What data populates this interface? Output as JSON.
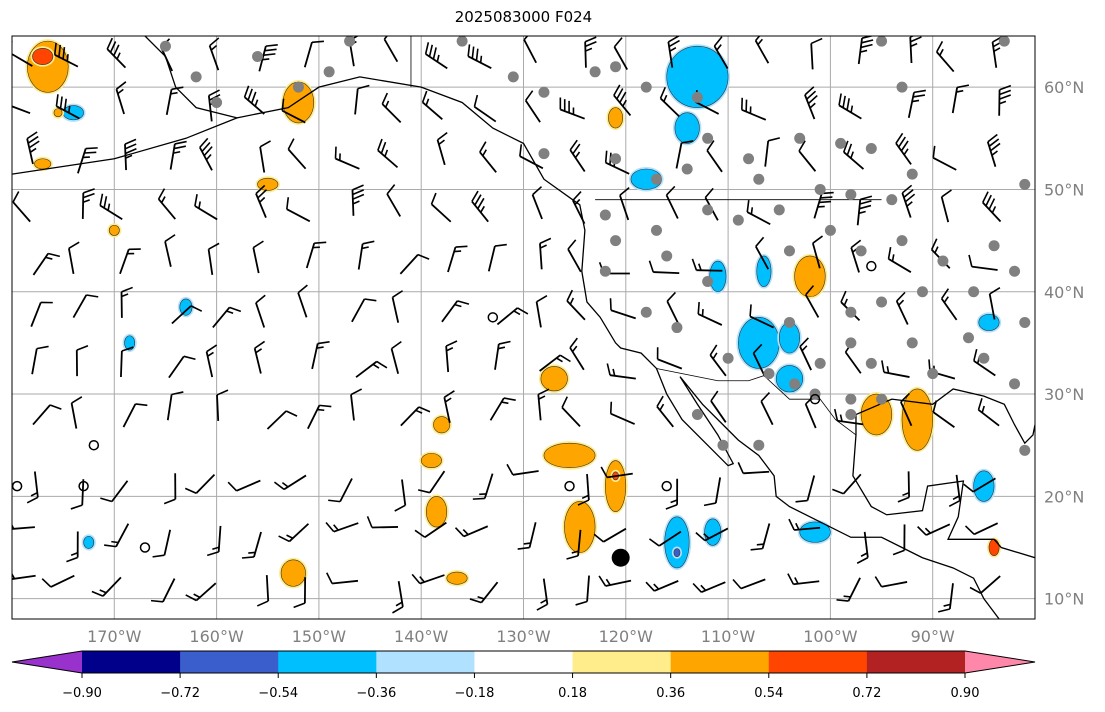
{
  "title": "2025083000 F024",
  "map": {
    "extent": {
      "lon": [
        -180,
        -80
      ],
      "lat": [
        8,
        65
      ]
    },
    "lon_ticks": [
      {
        "value": -170,
        "label": "170°W"
      },
      {
        "value": -160,
        "label": "160°W"
      },
      {
        "value": -150,
        "label": "150°W"
      },
      {
        "value": -140,
        "label": "140°W"
      },
      {
        "value": -130,
        "label": "130°W"
      },
      {
        "value": -120,
        "label": "120°W"
      },
      {
        "value": -110,
        "label": "110°W"
      },
      {
        "value": -100,
        "label": "100°W"
      },
      {
        "value": -90,
        "label": "90°W"
      }
    ],
    "lat_ticks": [
      {
        "value": 60,
        "label": "60°N"
      },
      {
        "value": 50,
        "label": "50°N"
      },
      {
        "value": 40,
        "label": "40°N"
      },
      {
        "value": 30,
        "label": "30°N"
      },
      {
        "value": 20,
        "label": "20°N"
      },
      {
        "value": 10,
        "label": "10°N"
      }
    ],
    "blobs": [
      {
        "lon": -176.5,
        "lat": 62,
        "rx": 2,
        "ry": 2.5,
        "c": "#FFA500"
      },
      {
        "lon": -177,
        "lat": 63,
        "rx": 1,
        "ry": 0.8,
        "c": "#FF4500"
      },
      {
        "lon": -174,
        "lat": 57.5,
        "rx": 1,
        "ry": 0.7,
        "c": "#00BFFF"
      },
      {
        "lon": -152,
        "lat": 58.5,
        "rx": 1.5,
        "ry": 2,
        "c": "#FFA500"
      },
      {
        "lon": -121,
        "lat": 57,
        "rx": 0.7,
        "ry": 1,
        "c": "#FFA500"
      },
      {
        "lon": -113,
        "lat": 61,
        "rx": 3,
        "ry": 3,
        "c": "#00BFFF"
      },
      {
        "lon": -114,
        "lat": 56,
        "rx": 1.2,
        "ry": 1.5,
        "c": "#00BFFF"
      },
      {
        "lon": -118,
        "lat": 51,
        "rx": 1.5,
        "ry": 1,
        "c": "#00BFFF"
      },
      {
        "lon": -102,
        "lat": 41.5,
        "rx": 1.5,
        "ry": 2,
        "c": "#FFA500"
      },
      {
        "lon": -107,
        "lat": 35,
        "rx": 2,
        "ry": 2.5,
        "c": "#00BFFF"
      },
      {
        "lon": -104,
        "lat": 35.5,
        "rx": 1,
        "ry": 1.5,
        "c": "#00BFFF"
      },
      {
        "lon": -104,
        "lat": 31.5,
        "rx": 1.3,
        "ry": 1.3,
        "c": "#00BFFF"
      },
      {
        "lon": -111,
        "lat": 41.5,
        "rx": 0.8,
        "ry": 1.5,
        "c": "#00BFFF"
      },
      {
        "lon": -106.5,
        "lat": 42,
        "rx": 0.7,
        "ry": 1.5,
        "c": "#00BFFF"
      },
      {
        "lon": -84.5,
        "lat": 37,
        "rx": 1,
        "ry": 0.8,
        "c": "#00BFFF"
      },
      {
        "lon": -85,
        "lat": 21,
        "rx": 1,
        "ry": 1.5,
        "c": "#00BFFF"
      },
      {
        "lon": -91.5,
        "lat": 27.5,
        "rx": 1.5,
        "ry": 3,
        "c": "#FFA500"
      },
      {
        "lon": -127,
        "lat": 31.5,
        "rx": 1.3,
        "ry": 1.2,
        "c": "#FFA500"
      },
      {
        "lon": -125.5,
        "lat": 24,
        "rx": 2.5,
        "ry": 1.2,
        "c": "#FFA500"
      },
      {
        "lon": -121,
        "lat": 21,
        "rx": 1,
        "ry": 2.5,
        "c": "#FFA500"
      },
      {
        "lon": -124.5,
        "lat": 17,
        "rx": 1.5,
        "ry": 2.5,
        "c": "#FFA500"
      },
      {
        "lon": -121,
        "lat": 22,
        "rx": 0.3,
        "ry": 0.4,
        "c": "#FF4500"
      },
      {
        "lon": -115,
        "lat": 15.5,
        "rx": 1.2,
        "ry": 2.5,
        "c": "#00BFFF"
      },
      {
        "lon": -115,
        "lat": 14.5,
        "rx": 0.3,
        "ry": 0.4,
        "c": "#3A5FCD"
      },
      {
        "lon": -111.5,
        "lat": 16.5,
        "rx": 0.8,
        "ry": 1.3,
        "c": "#00BFFF"
      },
      {
        "lon": -101.5,
        "lat": 16.5,
        "rx": 1.5,
        "ry": 1,
        "c": "#00BFFF"
      },
      {
        "lon": -138.5,
        "lat": 18.5,
        "rx": 1,
        "ry": 1.5,
        "c": "#FFA500"
      },
      {
        "lon": -139,
        "lat": 23.5,
        "rx": 1,
        "ry": 0.7,
        "c": "#FFA500"
      },
      {
        "lon": -138,
        "lat": 27,
        "rx": 0.8,
        "ry": 0.8,
        "c": "#FFA500"
      },
      {
        "lon": -152.5,
        "lat": 12.5,
        "rx": 1.2,
        "ry": 1.3,
        "c": "#FFA500"
      },
      {
        "lon": -136.5,
        "lat": 12,
        "rx": 1,
        "ry": 0.6,
        "c": "#FFA500"
      },
      {
        "lon": -172.5,
        "lat": 15.5,
        "rx": 0.5,
        "ry": 0.6,
        "c": "#00BFFF"
      },
      {
        "lon": -170,
        "lat": 46,
        "rx": 0.5,
        "ry": 0.5,
        "c": "#FFA500"
      },
      {
        "lon": -163,
        "lat": 38.5,
        "rx": 0.6,
        "ry": 0.8,
        "c": "#00BFFF"
      },
      {
        "lon": -168.5,
        "lat": 35,
        "rx": 0.5,
        "ry": 0.7,
        "c": "#00BFFF"
      },
      {
        "lon": -175.5,
        "lat": 57.5,
        "rx": 0.4,
        "ry": 0.4,
        "c": "#FFA500"
      },
      {
        "lon": -177,
        "lat": 52.5,
        "rx": 0.8,
        "ry": 0.5,
        "c": "#FFA500"
      },
      {
        "lon": -155,
        "lat": 50.5,
        "rx": 1,
        "ry": 0.6,
        "c": "#FFA500"
      },
      {
        "lon": -84,
        "lat": 15,
        "rx": 0.5,
        "ry": 0.8,
        "c": "#FF4500"
      },
      {
        "lon": -95.5,
        "lat": 28,
        "rx": 1.5,
        "ry": 2,
        "c": "#FFA500"
      }
    ],
    "stations_filled_grey": [
      [
        -165,
        64
      ],
      [
        -156,
        63
      ],
      [
        -162,
        61
      ],
      [
        -160,
        58.5
      ],
      [
        -147,
        64.5
      ],
      [
        -152,
        60
      ],
      [
        -149,
        61.5
      ],
      [
        -136,
        64.5
      ],
      [
        -131,
        61
      ],
      [
        -123,
        61.5
      ],
      [
        -128,
        59.5
      ],
      [
        -121,
        62
      ],
      [
        -118,
        60
      ],
      [
        -113,
        59
      ],
      [
        -112,
        55
      ],
      [
        -108,
        53
      ],
      [
        -103,
        55
      ],
      [
        -99,
        54.5
      ],
      [
        -96,
        54
      ],
      [
        -92,
        51.5
      ],
      [
        -93,
        60
      ],
      [
        -95,
        64.5
      ],
      [
        -83,
        64.5
      ],
      [
        -81,
        50.5
      ],
      [
        -128,
        53.5
      ],
      [
        -121,
        53
      ],
      [
        -117,
        51
      ],
      [
        -114,
        52
      ],
      [
        -107,
        51
      ],
      [
        -101,
        50
      ],
      [
        -98,
        49.5
      ],
      [
        -94,
        49
      ],
      [
        -105,
        48
      ],
      [
        -109,
        47
      ],
      [
        -112,
        48
      ],
      [
        -117,
        46
      ],
      [
        -121,
        45
      ],
      [
        -122,
        47.5
      ],
      [
        -122,
        42
      ],
      [
        -116,
        43.5
      ],
      [
        -112,
        41
      ],
      [
        -104,
        44
      ],
      [
        -100,
        46
      ],
      [
        -97,
        44
      ],
      [
        -93,
        45
      ],
      [
        -89,
        43
      ],
      [
        -84,
        44.5
      ],
      [
        -82,
        42
      ],
      [
        -118,
        38
      ],
      [
        -115,
        36.5
      ],
      [
        -110,
        33.5
      ],
      [
        -106,
        32
      ],
      [
        -104,
        37
      ],
      [
        -98,
        38
      ],
      [
        -95,
        39
      ],
      [
        -91,
        40
      ],
      [
        -86,
        40
      ],
      [
        -81,
        37
      ],
      [
        -92,
        35
      ],
      [
        -98,
        35
      ],
      [
        -101,
        33
      ],
      [
        -96,
        33
      ],
      [
        -90,
        32
      ],
      [
        -85,
        33.5
      ],
      [
        -82,
        31
      ],
      [
        -95,
        29.5
      ],
      [
        -98,
        28
      ],
      [
        -101.5,
        30
      ],
      [
        -86.5,
        35.5
      ],
      [
        -113,
        28
      ],
      [
        -110.5,
        25
      ],
      [
        -107,
        25
      ],
      [
        -81,
        24.5
      ],
      [
        -98,
        29.5
      ],
      [
        -103.5,
        31
      ]
    ],
    "stations_open": [
      [
        -172,
        25
      ],
      [
        -179.5,
        21
      ],
      [
        -173,
        21
      ],
      [
        -167,
        15
      ],
      [
        -133,
        37.5
      ],
      [
        -125.5,
        21
      ],
      [
        -116,
        21
      ],
      [
        -96,
        42.5
      ],
      [
        -101.5,
        29.5
      ]
    ],
    "station_large": [
      -120.5,
      14
    ]
  },
  "colorbar": {
    "colors": [
      "#9932CC",
      "#00008B",
      "#3A5FCD",
      "#00BFFF",
      "#B0E2FF",
      "#FFFFFF",
      "#FFEC8B",
      "#FFA500",
      "#FF4500",
      "#B22222",
      "#FF88AA"
    ],
    "labels": [
      "−0.90",
      "−0.72",
      "−0.54",
      "−0.36",
      "−0.18",
      "0.18",
      "0.36",
      "0.54",
      "0.72",
      "0.90"
    ]
  }
}
